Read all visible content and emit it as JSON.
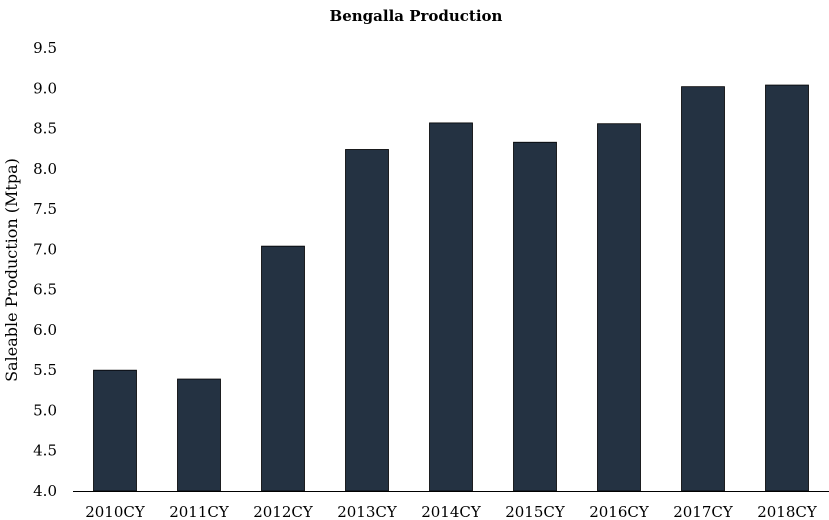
{
  "chart_data": {
    "type": "bar",
    "title": "Bengalla Production",
    "xlabel": "",
    "ylabel": "Saleable Production (Mtpa)",
    "categories": [
      "2010CY",
      "2011CY",
      "2012CY",
      "2013CY",
      "2014CY",
      "2015CY",
      "2016CY",
      "2017CY",
      "2018CY"
    ],
    "values": [
      5.5,
      5.39,
      7.04,
      8.24,
      8.57,
      8.33,
      8.56,
      9.02,
      9.04
    ],
    "ylim": [
      4.0,
      9.5
    ],
    "yticks": [
      "4.0",
      "4.5",
      "5.0",
      "5.5",
      "6.0",
      "6.5",
      "7.0",
      "7.5",
      "8.0",
      "8.5",
      "9.0",
      "9.5"
    ],
    "grid": false,
    "bar_color": "#243242"
  }
}
